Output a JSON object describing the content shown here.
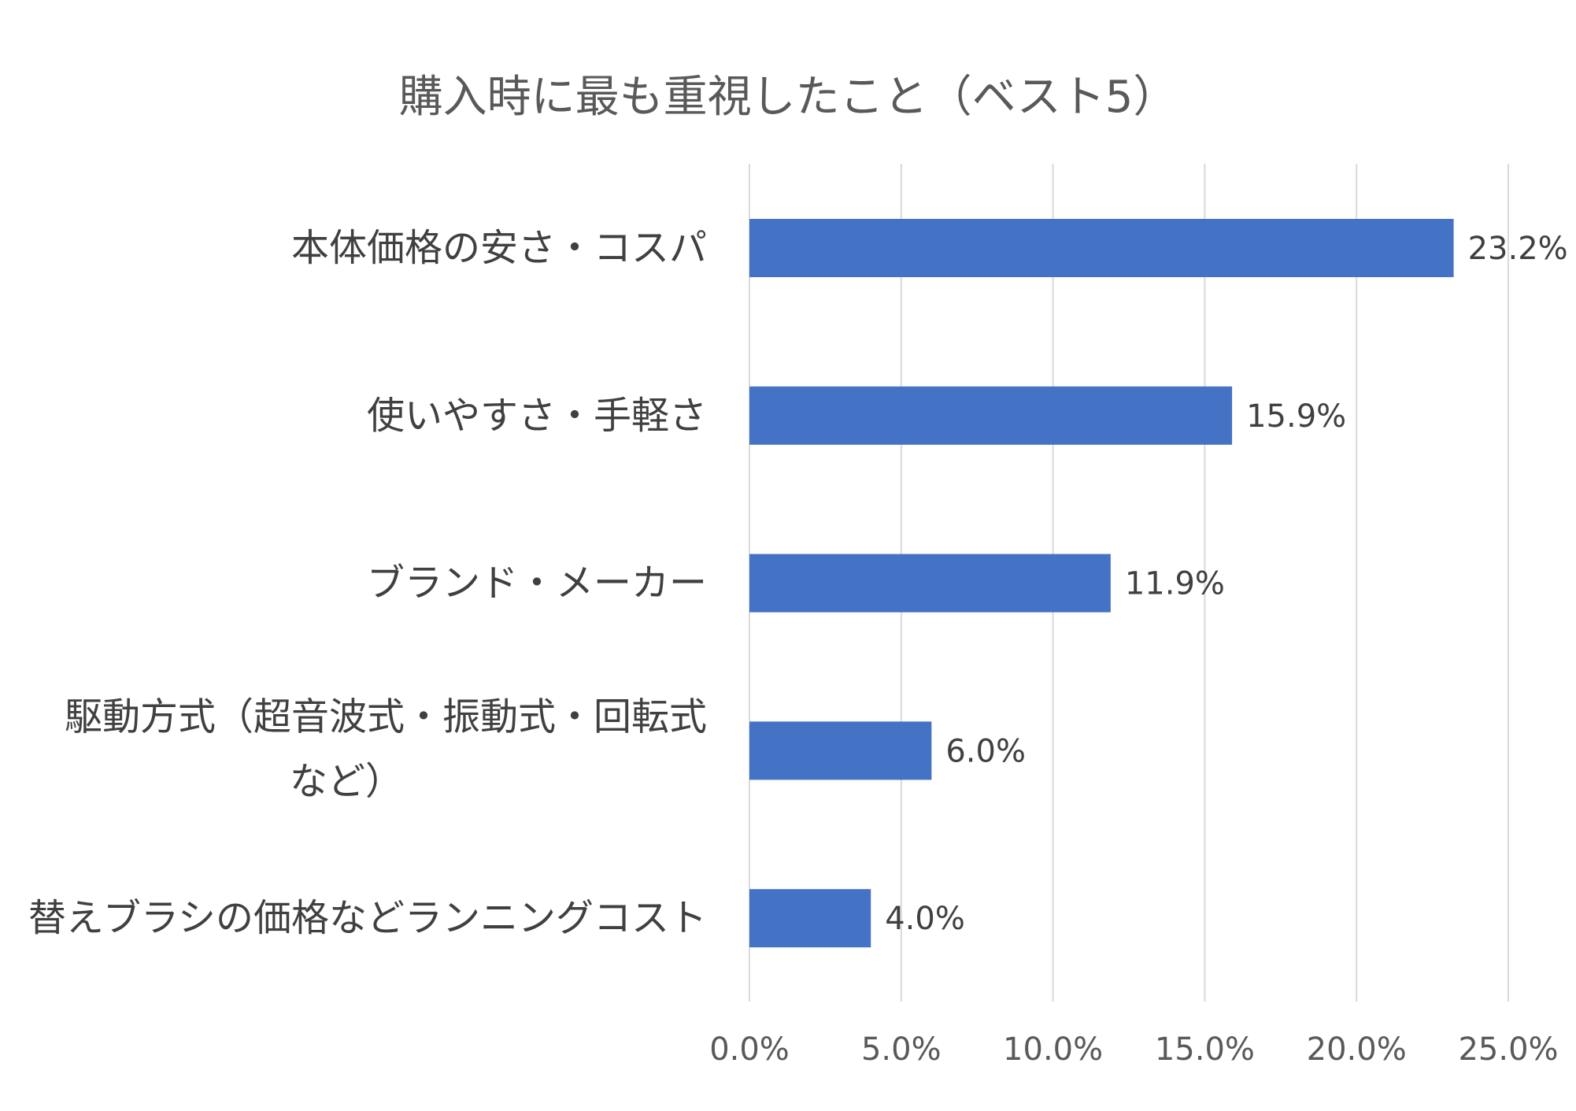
{
  "chart_data": {
    "type": "bar",
    "orientation": "horizontal",
    "title": "購入時に最も重視したこと（ベスト5）",
    "categories": [
      [
        "本体価格の安さ・コスパ"
      ],
      [
        "使いやすさ・手軽さ"
      ],
      [
        "ブランド・メーカー"
      ],
      [
        "駆動方式（超音波式・振動式・回転式",
        "など）"
      ],
      [
        "替えブラシの価格などランニングコスト"
      ]
    ],
    "values": [
      23.2,
      15.9,
      11.9,
      6.0,
      4.0
    ],
    "data_labels": [
      "23.2%",
      "15.9%",
      "11.9%",
      "6.0%",
      "4.0%"
    ],
    "x_ticks": [
      0,
      5,
      10,
      15,
      20,
      25
    ],
    "x_tick_labels": [
      "0.0%",
      "5.0%",
      "10.0%",
      "15.0%",
      "20.0%",
      "25.0%"
    ],
    "xlim": [
      0,
      25
    ],
    "xlabel": "",
    "ylabel": "",
    "grid": true,
    "legend": "none",
    "bar_color": "#4472C4",
    "grid_color": "#D9D9D9"
  }
}
